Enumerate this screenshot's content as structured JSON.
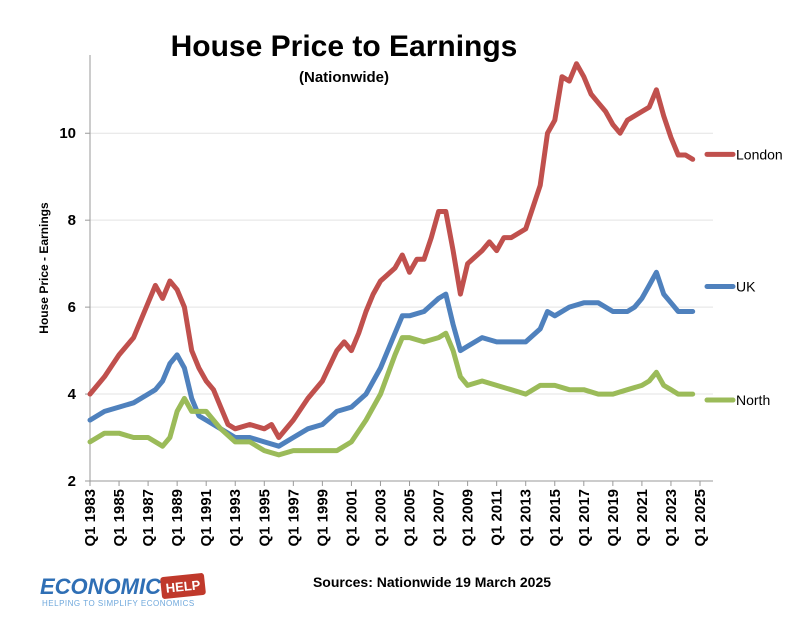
{
  "chart_data": {
    "type": "line",
    "title": "House Price to Earnings",
    "subtitle": "(Nationwide)",
    "ylabel": "House Price - Earnings",
    "xlabel": "",
    "ylim": [
      2,
      11.8
    ],
    "xlim": [
      1983,
      2025
    ],
    "yticks": [
      2,
      4,
      6,
      8,
      10
    ],
    "xtick_labels": [
      "Q1 1983",
      "Q1 1985",
      "Q1 1987",
      "Q1 1989",
      "Q1 1991",
      "Q1 1993",
      "Q1 1995",
      "Q1 1997",
      "Q1 1999",
      "Q1 2001",
      "Q1 2003",
      "Q1 2005",
      "Q1 2007",
      "Q1 2009",
      "Q1 2011",
      "Q1 2013",
      "Q1 2015",
      "Q1 2017",
      "Q1 2019",
      "Q1 2021",
      "Q1 2023",
      "Q1 2025"
    ],
    "xtick_years": [
      1983,
      1985,
      1987,
      1989,
      1991,
      1993,
      1995,
      1997,
      1999,
      2001,
      2003,
      2005,
      2007,
      2009,
      2011,
      2013,
      2015,
      2017,
      2019,
      2021,
      2023,
      2025
    ],
    "grid": "horizontal",
    "legend": "right-of-lines",
    "series": [
      {
        "name": "London",
        "color": "#c0504d",
        "points": [
          [
            1983,
            4.0
          ],
          [
            1984,
            4.4
          ],
          [
            1985,
            4.9
          ],
          [
            1986,
            5.3
          ],
          [
            1987,
            6.1
          ],
          [
            1987.5,
            6.5
          ],
          [
            1988,
            6.2
          ],
          [
            1988.5,
            6.6
          ],
          [
            1989,
            6.4
          ],
          [
            1989.5,
            6.0
          ],
          [
            1990,
            5.0
          ],
          [
            1990.5,
            4.6
          ],
          [
            1991,
            4.3
          ],
          [
            1991.5,
            4.1
          ],
          [
            1992,
            3.7
          ],
          [
            1992.5,
            3.3
          ],
          [
            1993,
            3.2
          ],
          [
            1994,
            3.3
          ],
          [
            1995,
            3.2
          ],
          [
            1995.5,
            3.3
          ],
          [
            1996,
            3.0
          ],
          [
            1997,
            3.4
          ],
          [
            1998,
            3.9
          ],
          [
            1999,
            4.3
          ],
          [
            2000,
            5.0
          ],
          [
            2000.5,
            5.2
          ],
          [
            2001,
            5.0
          ],
          [
            2001.5,
            5.4
          ],
          [
            2002,
            5.9
          ],
          [
            2002.5,
            6.3
          ],
          [
            2003,
            6.6
          ],
          [
            2004,
            6.9
          ],
          [
            2004.5,
            7.2
          ],
          [
            2005,
            6.8
          ],
          [
            2005.5,
            7.1
          ],
          [
            2006,
            7.1
          ],
          [
            2006.5,
            7.6
          ],
          [
            2007,
            8.2
          ],
          [
            2007.5,
            8.2
          ],
          [
            2008,
            7.3
          ],
          [
            2008.5,
            6.3
          ],
          [
            2009,
            7.0
          ],
          [
            2010,
            7.3
          ],
          [
            2010.5,
            7.5
          ],
          [
            2011,
            7.3
          ],
          [
            2011.5,
            7.6
          ],
          [
            2012,
            7.6
          ],
          [
            2013,
            7.8
          ],
          [
            2013.5,
            8.3
          ],
          [
            2014,
            8.8
          ],
          [
            2014.5,
            10.0
          ],
          [
            2015,
            10.3
          ],
          [
            2015.5,
            11.3
          ],
          [
            2016,
            11.2
          ],
          [
            2016.5,
            11.6
          ],
          [
            2017,
            11.3
          ],
          [
            2017.5,
            10.9
          ],
          [
            2018,
            10.7
          ],
          [
            2018.5,
            10.5
          ],
          [
            2019,
            10.2
          ],
          [
            2019.5,
            10.0
          ],
          [
            2020,
            10.3
          ],
          [
            2020.5,
            10.4
          ],
          [
            2021,
            10.5
          ],
          [
            2021.5,
            10.6
          ],
          [
            2022,
            11.0
          ],
          [
            2022.5,
            10.4
          ],
          [
            2023,
            9.9
          ],
          [
            2023.5,
            9.5
          ],
          [
            2024,
            9.5
          ],
          [
            2024.5,
            9.4
          ]
        ]
      },
      {
        "name": "UK",
        "color": "#4f81bd",
        "points": [
          [
            1983,
            3.4
          ],
          [
            1984,
            3.6
          ],
          [
            1985,
            3.7
          ],
          [
            1986,
            3.8
          ],
          [
            1987,
            4.0
          ],
          [
            1987.5,
            4.1
          ],
          [
            1988,
            4.3
          ],
          [
            1988.5,
            4.7
          ],
          [
            1989,
            4.9
          ],
          [
            1989.5,
            4.6
          ],
          [
            1990,
            3.9
          ],
          [
            1990.5,
            3.5
          ],
          [
            1991,
            3.4
          ],
          [
            1992,
            3.2
          ],
          [
            1993,
            3.0
          ],
          [
            1994,
            3.0
          ],
          [
            1995,
            2.9
          ],
          [
            1996,
            2.8
          ],
          [
            1997,
            3.0
          ],
          [
            1998,
            3.2
          ],
          [
            1999,
            3.3
          ],
          [
            2000,
            3.6
          ],
          [
            2001,
            3.7
          ],
          [
            2002,
            4.0
          ],
          [
            2003,
            4.6
          ],
          [
            2004,
            5.4
          ],
          [
            2004.5,
            5.8
          ],
          [
            2005,
            5.8
          ],
          [
            2006,
            5.9
          ],
          [
            2007,
            6.2
          ],
          [
            2007.5,
            6.3
          ],
          [
            2008,
            5.6
          ],
          [
            2008.5,
            5.0
          ],
          [
            2009,
            5.1
          ],
          [
            2010,
            5.3
          ],
          [
            2011,
            5.2
          ],
          [
            2012,
            5.2
          ],
          [
            2013,
            5.2
          ],
          [
            2014,
            5.5
          ],
          [
            2014.5,
            5.9
          ],
          [
            2015,
            5.8
          ],
          [
            2016,
            6.0
          ],
          [
            2017,
            6.1
          ],
          [
            2018,
            6.1
          ],
          [
            2019,
            5.9
          ],
          [
            2020,
            5.9
          ],
          [
            2020.5,
            6.0
          ],
          [
            2021,
            6.2
          ],
          [
            2021.5,
            6.5
          ],
          [
            2022,
            6.8
          ],
          [
            2022.5,
            6.3
          ],
          [
            2023,
            6.1
          ],
          [
            2023.5,
            5.9
          ],
          [
            2024,
            5.9
          ],
          [
            2024.5,
            5.9
          ]
        ]
      },
      {
        "name": "North",
        "color": "#9bbb59",
        "points": [
          [
            1983,
            2.9
          ],
          [
            1984,
            3.1
          ],
          [
            1985,
            3.1
          ],
          [
            1986,
            3.0
          ],
          [
            1987,
            3.0
          ],
          [
            1988,
            2.8
          ],
          [
            1988.5,
            3.0
          ],
          [
            1989,
            3.6
          ],
          [
            1989.5,
            3.9
          ],
          [
            1990,
            3.6
          ],
          [
            1991,
            3.6
          ],
          [
            1992,
            3.2
          ],
          [
            1993,
            2.9
          ],
          [
            1994,
            2.9
          ],
          [
            1995,
            2.7
          ],
          [
            1996,
            2.6
          ],
          [
            1997,
            2.7
          ],
          [
            1998,
            2.7
          ],
          [
            1999,
            2.7
          ],
          [
            2000,
            2.7
          ],
          [
            2001,
            2.9
          ],
          [
            2002,
            3.4
          ],
          [
            2003,
            4.0
          ],
          [
            2004,
            4.9
          ],
          [
            2004.5,
            5.3
          ],
          [
            2005,
            5.3
          ],
          [
            2006,
            5.2
          ],
          [
            2007,
            5.3
          ],
          [
            2007.5,
            5.4
          ],
          [
            2008,
            5.0
          ],
          [
            2008.5,
            4.4
          ],
          [
            2009,
            4.2
          ],
          [
            2010,
            4.3
          ],
          [
            2011,
            4.2
          ],
          [
            2012,
            4.1
          ],
          [
            2013,
            4.0
          ],
          [
            2014,
            4.2
          ],
          [
            2015,
            4.2
          ],
          [
            2016,
            4.1
          ],
          [
            2017,
            4.1
          ],
          [
            2018,
            4.0
          ],
          [
            2019,
            4.0
          ],
          [
            2020,
            4.1
          ],
          [
            2021,
            4.2
          ],
          [
            2021.5,
            4.3
          ],
          [
            2022,
            4.5
          ],
          [
            2022.5,
            4.2
          ],
          [
            2023,
            4.1
          ],
          [
            2023.5,
            4.0
          ],
          [
            2024,
            4.0
          ],
          [
            2024.5,
            4.0
          ]
        ]
      }
    ],
    "source": "Sources: Nationwide  19 March 2025"
  },
  "logo": {
    "text": "ECONOMICS",
    "badge": "HELP",
    "tagline": "HELPING TO SIMPLIFY ECONOMICS",
    "colors": {
      "word": "#2f6fb5",
      "badge": "#c0392b"
    }
  }
}
